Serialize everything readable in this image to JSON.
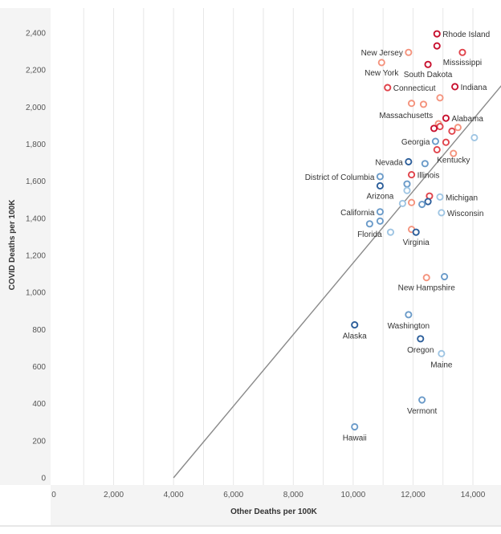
{
  "chart_data": {
    "type": "scatter",
    "xlabel": "Other Deaths per 100K",
    "ylabel": "COVID Deaths per 100K",
    "xlim": [
      -400,
      15000
    ],
    "ylim": [
      -30,
      2540
    ],
    "x_ticks": [
      0,
      2000,
      4000,
      6000,
      8000,
      10000,
      12000,
      14000
    ],
    "x_tick_labels": [
      "0",
      "2,000",
      "4,000",
      "6,000",
      "8,000",
      "10,000",
      "12,000",
      "14,000"
    ],
    "y_ticks": [
      0,
      200,
      400,
      600,
      800,
      1000,
      1200,
      1400,
      1600,
      1800,
      2000,
      2200,
      2400
    ],
    "y_tick_labels": [
      "0",
      "200",
      "400",
      "600",
      "800",
      "1,000",
      "1,200",
      "1,400",
      "1,600",
      "1,800",
      "2,000",
      "2,200",
      "2,400"
    ],
    "gridlines": "vertical",
    "legend": "none",
    "colors": {
      "dark_red": "#c8102e",
      "red": "#e0434b",
      "salmon": "#f4937d",
      "light_blue": "#9fc5e3",
      "mid_blue": "#6b9bc9",
      "dark_blue": "#2c5e9a",
      "trend_line": "#8a8a8a",
      "grid": "#e6e6e6",
      "panel_bg": "#f4f4f4"
    },
    "trend_line": {
      "x": [
        4000,
        15000
      ],
      "y": [
        0,
        2125
      ]
    },
    "points": [
      {
        "x": 12800,
        "y": 2395,
        "label": "Rhode Island",
        "color": "dark_red"
      },
      {
        "x": 12800,
        "y": 2330,
        "label": "",
        "color": "dark_red"
      },
      {
        "x": 11850,
        "y": 2295,
        "label": "New Jersey",
        "color": "salmon"
      },
      {
        "x": 13650,
        "y": 2295,
        "label": "Mississippi",
        "color": "red"
      },
      {
        "x": 10950,
        "y": 2240,
        "label": "New York",
        "color": "salmon"
      },
      {
        "x": 12500,
        "y": 2230,
        "label": "South Dakota",
        "color": "dark_red"
      },
      {
        "x": 11150,
        "y": 2105,
        "label": "Connecticut",
        "color": "red"
      },
      {
        "x": 13400,
        "y": 2110,
        "label": "Indiana",
        "color": "dark_red"
      },
      {
        "x": 12900,
        "y": 2050,
        "label": "",
        "color": "salmon"
      },
      {
        "x": 11950,
        "y": 2020,
        "label": "",
        "color": "salmon"
      },
      {
        "x": 12350,
        "y": 2015,
        "label": "",
        "color": "salmon"
      },
      {
        "x": 13100,
        "y": 1940,
        "label": "Alabama",
        "color": "dark_red"
      },
      {
        "x": 12850,
        "y": 1910,
        "label": "Massachusetts",
        "color": "salmon"
      },
      {
        "x": 12900,
        "y": 1895,
        "label": "",
        "color": "red"
      },
      {
        "x": 13500,
        "y": 1890,
        "label": "",
        "color": "salmon"
      },
      {
        "x": 12700,
        "y": 1885,
        "label": "",
        "color": "dark_red"
      },
      {
        "x": 13300,
        "y": 1870,
        "label": "",
        "color": "red"
      },
      {
        "x": 14050,
        "y": 1835,
        "label": "",
        "color": "light_blue"
      },
      {
        "x": 12750,
        "y": 1815,
        "label": "Georgia",
        "color": "mid_blue"
      },
      {
        "x": 13100,
        "y": 1810,
        "label": "",
        "color": "red"
      },
      {
        "x": 12800,
        "y": 1770,
        "label": "Kentucky",
        "color": "red"
      },
      {
        "x": 13350,
        "y": 1750,
        "label": "",
        "color": "salmon"
      },
      {
        "x": 11850,
        "y": 1705,
        "label": "Nevada",
        "color": "dark_blue"
      },
      {
        "x": 12400,
        "y": 1695,
        "label": "",
        "color": "mid_blue"
      },
      {
        "x": 10900,
        "y": 1625,
        "label": "District of Columbia",
        "color": "mid_blue"
      },
      {
        "x": 11950,
        "y": 1635,
        "label": "Illinois",
        "color": "red"
      },
      {
        "x": 11800,
        "y": 1585,
        "label": "",
        "color": "mid_blue"
      },
      {
        "x": 10900,
        "y": 1575,
        "label": "Arizona",
        "color": "dark_blue"
      },
      {
        "x": 11800,
        "y": 1550,
        "label": "",
        "color": "light_blue"
      },
      {
        "x": 12550,
        "y": 1520,
        "label": "",
        "color": "red"
      },
      {
        "x": 12900,
        "y": 1515,
        "label": "Michigan",
        "color": "light_blue"
      },
      {
        "x": 12500,
        "y": 1490,
        "label": "",
        "color": "dark_blue"
      },
      {
        "x": 11650,
        "y": 1480,
        "label": "",
        "color": "light_blue"
      },
      {
        "x": 11950,
        "y": 1485,
        "label": "",
        "color": "salmon"
      },
      {
        "x": 12300,
        "y": 1475,
        "label": "",
        "color": "mid_blue"
      },
      {
        "x": 10900,
        "y": 1435,
        "label": "California",
        "color": "mid_blue"
      },
      {
        "x": 12950,
        "y": 1430,
        "label": "Wisconsin",
        "color": "light_blue"
      },
      {
        "x": 10900,
        "y": 1385,
        "label": "",
        "color": "mid_blue"
      },
      {
        "x": 10550,
        "y": 1370,
        "label": "Florida",
        "color": "mid_blue"
      },
      {
        "x": 11950,
        "y": 1340,
        "label": "",
        "color": "salmon"
      },
      {
        "x": 11250,
        "y": 1325,
        "label": "",
        "color": "light_blue"
      },
      {
        "x": 12100,
        "y": 1325,
        "label": "Virginia",
        "color": "dark_blue"
      },
      {
        "x": 13050,
        "y": 1085,
        "label": "",
        "color": "mid_blue"
      },
      {
        "x": 12450,
        "y": 1080,
        "label": "New Hampshire",
        "color": "salmon"
      },
      {
        "x": 11850,
        "y": 880,
        "label": "Washington",
        "color": "mid_blue"
      },
      {
        "x": 10050,
        "y": 825,
        "label": "Alaska",
        "color": "dark_blue"
      },
      {
        "x": 12250,
        "y": 750,
        "label": "Oregon",
        "color": "dark_blue"
      },
      {
        "x": 12950,
        "y": 670,
        "label": "Maine",
        "color": "light_blue"
      },
      {
        "x": 12300,
        "y": 420,
        "label": "Vermont",
        "color": "mid_blue"
      },
      {
        "x": 10050,
        "y": 275,
        "label": "Hawaii",
        "color": "mid_blue"
      }
    ]
  }
}
